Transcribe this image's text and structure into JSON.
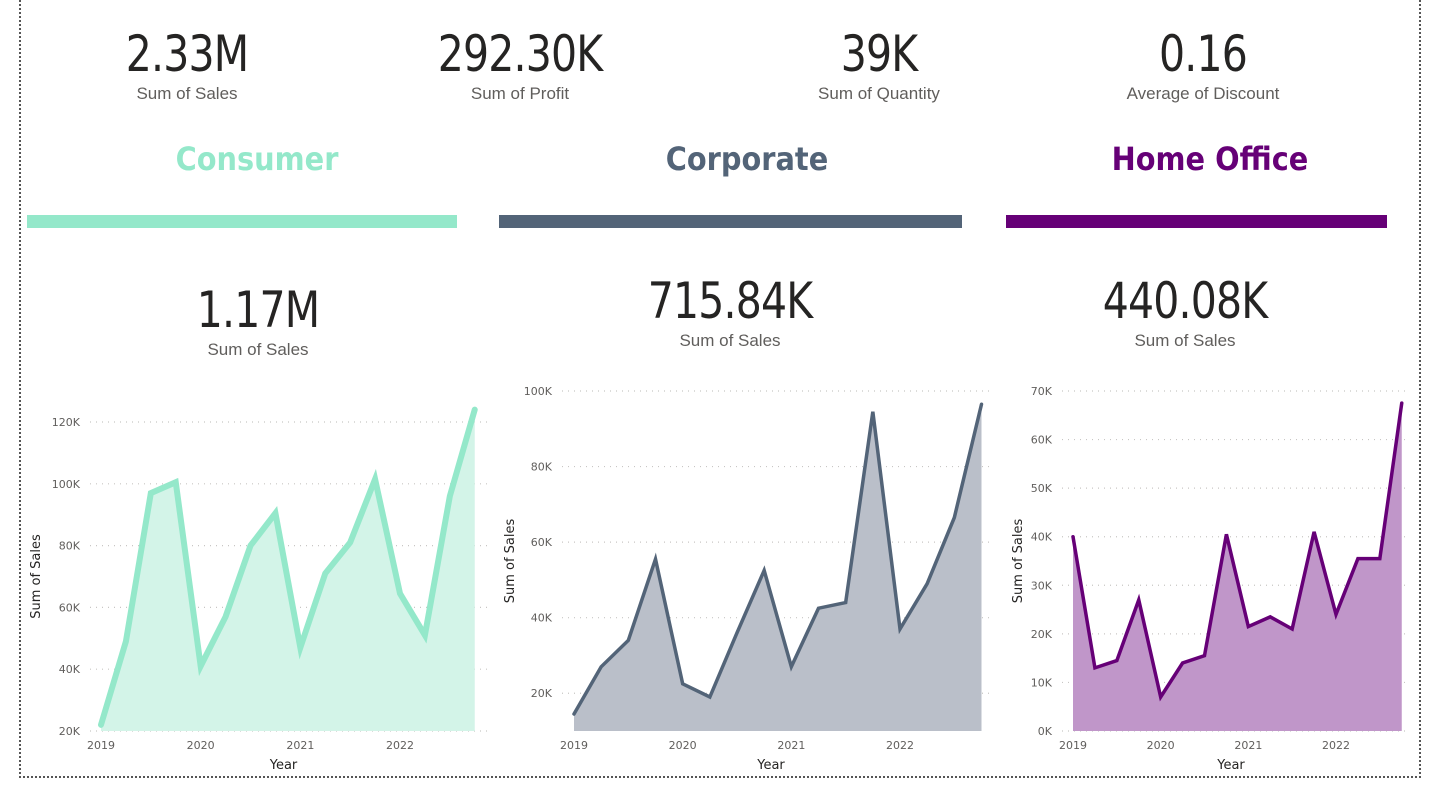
{
  "kpis": [
    {
      "value": "2.33M",
      "label": "Sum of Sales"
    },
    {
      "value": "292.30K",
      "label": "Sum of Profit"
    },
    {
      "value": "39K",
      "label": "Sum of Quantity"
    },
    {
      "value": "0.16",
      "label": "Average of Discount"
    }
  ],
  "segments": [
    {
      "title": "Consumer",
      "color": "#94e8ca",
      "fill": "#d3f4e8",
      "value": "1.17M",
      "value_label": "Sum of Sales"
    },
    {
      "title": "Corporate",
      "color": "#536478",
      "fill": "#babfc9",
      "value": "715.84K",
      "value_label": "Sum of Sales"
    },
    {
      "title": "Home Office",
      "color": "#660077",
      "fill": "#c096c9",
      "value": "440.08K",
      "value_label": "Sum of Sales"
    }
  ],
  "chart_data": [
    {
      "type": "area",
      "title": "Consumer",
      "xlabel": "Year",
      "ylabel": "Sum of Sales",
      "x_ticks": [
        "2019",
        "2020",
        "2021",
        "2022"
      ],
      "x": [
        2019.0,
        2019.25,
        2019.5,
        2019.75,
        2020.0,
        2020.25,
        2020.5,
        2020.75,
        2021.0,
        2021.25,
        2021.5,
        2021.75,
        2022.0,
        2022.25,
        2022.5,
        2022.75
      ],
      "values": [
        22000,
        49000,
        97000,
        100500,
        41000,
        57000,
        80000,
        90500,
        47000,
        71000,
        81000,
        101500,
        64500,
        51000,
        96000,
        124000
      ],
      "ylim": [
        20000,
        120000
      ],
      "y_ticks": [
        "20K",
        "40K",
        "60K",
        "80K",
        "100K",
        "120K"
      ],
      "y_tick_values": [
        20000,
        40000,
        60000,
        80000,
        100000,
        120000
      ],
      "grid": true
    },
    {
      "type": "area",
      "title": "Corporate",
      "xlabel": "Year",
      "ylabel": "Sum of Sales",
      "x_ticks": [
        "2019",
        "2020",
        "2021",
        "2022"
      ],
      "x": [
        2019.0,
        2019.25,
        2019.5,
        2019.75,
        2020.0,
        2020.25,
        2020.5,
        2020.75,
        2021.0,
        2021.25,
        2021.5,
        2021.75,
        2022.0,
        2022.25,
        2022.5,
        2022.75
      ],
      "values": [
        14500,
        27000,
        34000,
        55500,
        22500,
        19000,
        36000,
        52500,
        27000,
        42500,
        44000,
        94500,
        37000,
        49000,
        66500,
        96500
      ],
      "ylim": [
        10000,
        100000
      ],
      "y_ticks": [
        "20K",
        "40K",
        "60K",
        "80K",
        "100K"
      ],
      "y_tick_values": [
        20000,
        40000,
        60000,
        80000,
        100000
      ],
      "grid": true
    },
    {
      "type": "area",
      "title": "Home Office",
      "xlabel": "Year",
      "ylabel": "Sum of Sales",
      "x_ticks": [
        "2019",
        "2020",
        "2021",
        "2022"
      ],
      "x": [
        2019.0,
        2019.25,
        2019.5,
        2019.75,
        2020.0,
        2020.25,
        2020.5,
        2020.75,
        2021.0,
        2021.25,
        2021.5,
        2021.75,
        2022.0,
        2022.25,
        2022.5,
        2022.75
      ],
      "values": [
        40000,
        13000,
        14500,
        27000,
        7000,
        14000,
        15500,
        40500,
        21500,
        23500,
        21000,
        41000,
        24000,
        35500,
        35500,
        67500
      ],
      "ylim": [
        0,
        70000
      ],
      "y_ticks": [
        "0K",
        "10K",
        "20K",
        "30K",
        "40K",
        "50K",
        "60K",
        "70K"
      ],
      "y_tick_values": [
        0,
        10000,
        20000,
        30000,
        40000,
        50000,
        60000,
        70000
      ],
      "grid": true
    }
  ]
}
